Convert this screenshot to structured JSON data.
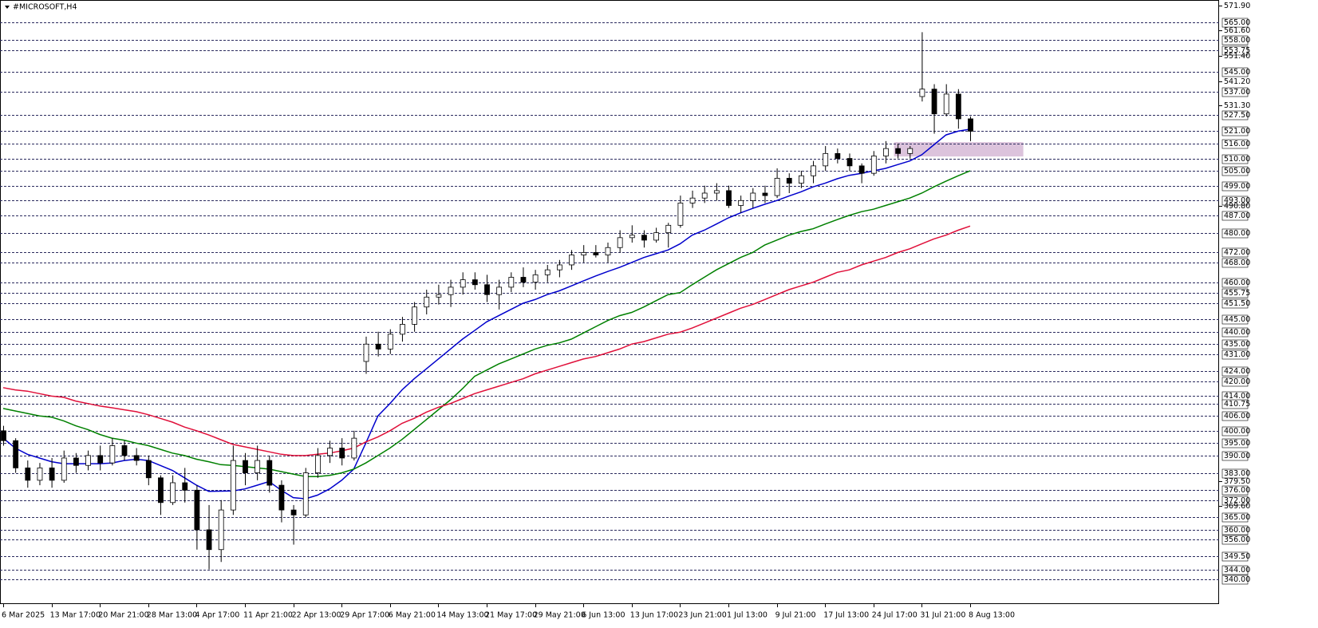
{
  "chart_data": {
    "type": "candlestick",
    "title": "#MICROSOFT,H4",
    "categories": [
      "6 Mar 2025",
      null,
      null,
      null,
      "13 Mar 17:00",
      null,
      null,
      null,
      "20 Mar 21:00",
      null,
      null,
      null,
      "28 Mar 13:00",
      null,
      null,
      null,
      "4 Apr 17:00",
      null,
      null,
      null,
      "11 Apr 21:00",
      null,
      null,
      null,
      "22 Apr 13:00",
      null,
      null,
      null,
      "29 Apr 17:00",
      null,
      null,
      null,
      "6 May 21:00",
      null,
      null,
      null,
      "14 May 13:00",
      null,
      null,
      null,
      "21 May 17:00",
      null,
      null,
      null,
      "29 May 21:00",
      null,
      null,
      null,
      "6 Jun 13:00",
      null,
      null,
      null,
      "13 Jun 17:00",
      null,
      null,
      null,
      "23 Jun 21:00",
      null,
      null,
      null,
      "1 Jul 13:00",
      null,
      null,
      null,
      "9 Jul 21:00",
      null,
      null,
      null,
      "17 Jul 13:00",
      null,
      null,
      null,
      "24 Jul 17:00",
      null,
      null,
      null,
      "31 Jul 21:00",
      null,
      null,
      null,
      "8 Aug 13:00"
    ],
    "candles": {
      "open": [
        400,
        396,
        385,
        380,
        385,
        380,
        389,
        386,
        390,
        387,
        394,
        390,
        388,
        381,
        371,
        379,
        376,
        360,
        352,
        368,
        388,
        383,
        388,
        378,
        368,
        366,
        383,
        390,
        393,
        389,
        428,
        435,
        433,
        439,
        443,
        450,
        454,
        455,
        458,
        461,
        459,
        455,
        458,
        462,
        460,
        463,
        465,
        467,
        471,
        472,
        471,
        474,
        478,
        479,
        477,
        480,
        483,
        492,
        494,
        496,
        497,
        491,
        493,
        496,
        495,
        502,
        500,
        503,
        507,
        512,
        510,
        507,
        504,
        511,
        514,
        512,
        535,
        538,
        528,
        536,
        526
      ],
      "high": [
        402,
        397,
        388,
        387,
        389,
        392,
        391,
        392,
        394,
        397,
        396,
        393,
        390,
        382,
        382,
        385,
        378,
        370,
        372,
        394,
        391,
        394,
        390,
        380,
        370,
        385,
        393,
        396,
        397,
        400,
        438,
        440,
        441,
        446,
        452,
        457,
        459,
        461,
        464,
        464,
        463,
        461,
        464,
        466,
        465,
        467,
        469,
        473,
        475,
        475,
        476,
        481,
        483,
        481,
        482,
        484,
        495,
        497,
        499,
        500,
        499,
        495,
        498,
        499,
        506,
        504,
        505,
        509,
        515,
        514,
        512,
        508,
        513,
        517,
        516,
        515,
        561,
        540,
        540,
        538,
        527
      ],
      "low": [
        394,
        383,
        377,
        378,
        377,
        379,
        383,
        384,
        384,
        386,
        388,
        386,
        378,
        366,
        370,
        371,
        352,
        344,
        347,
        366,
        378,
        380,
        375,
        363,
        354,
        365,
        381,
        387,
        386,
        388,
        423,
        430,
        431,
        436,
        440,
        447,
        451,
        450,
        455,
        457,
        452,
        449,
        456,
        458,
        457,
        460,
        462,
        465,
        468,
        470,
        468,
        472,
        476,
        474,
        476,
        474,
        482,
        490,
        492,
        493,
        490,
        488,
        490,
        492,
        494,
        496,
        498,
        500,
        505,
        508,
        505,
        500,
        503,
        508,
        510,
        510,
        533,
        520,
        527,
        522,
        517
      ],
      "close": [
        396,
        385,
        380,
        385,
        380,
        389,
        386,
        390,
        387,
        394,
        390,
        388,
        381,
        371,
        379,
        376,
        360,
        352,
        368,
        388,
        383,
        388,
        378,
        368,
        366,
        383,
        390,
        393,
        389,
        397,
        435,
        433,
        439,
        443,
        450,
        454,
        455,
        458,
        461,
        459,
        455,
        458,
        462,
        460,
        463,
        465,
        467,
        471,
        472,
        471,
        474,
        478,
        479,
        477,
        480,
        483,
        492,
        494,
        496,
        497,
        491,
        493,
        496,
        495,
        502,
        500,
        503,
        507,
        512,
        510,
        507,
        504,
        511,
        514,
        512,
        514,
        538,
        528,
        536,
        526,
        521
      ],
      "up_color": "#ffffff",
      "down_color": "#000000",
      "edge_color": "#000000"
    },
    "lines": [
      {
        "color": "#0000cc",
        "values": [
          397,
          393,
          390.5,
          389,
          387.5,
          386.7,
          386.7,
          386.7,
          386.7,
          387,
          388,
          388.5,
          388,
          386,
          384,
          381,
          378,
          375.5,
          375.6,
          375.7,
          376.5,
          378,
          379.5,
          376,
          373,
          372.5,
          374,
          376.5,
          380,
          384.5,
          395,
          406,
          411,
          416.5,
          421,
          425,
          429,
          433,
          437,
          440.5,
          444,
          446.5,
          449,
          451.5,
          453,
          455,
          456.5,
          458.5,
          460.5,
          462.5,
          464.3,
          466,
          468,
          470,
          471.5,
          473,
          475.5,
          479,
          481,
          483.5,
          486,
          488,
          489.8,
          491.5,
          493,
          494.8,
          496.5,
          498.5,
          500,
          501.8,
          503.2,
          504,
          505,
          506,
          507.5,
          509,
          511.5,
          515.5,
          519.5,
          521,
          521.8
        ]
      },
      {
        "color": "#008000",
        "values": [
          409,
          408,
          407,
          406,
          405.5,
          404,
          402,
          400.5,
          398.5,
          397,
          396.2,
          395,
          394,
          392.5,
          391,
          390,
          388.5,
          387.5,
          386.3,
          386,
          385.5,
          385,
          384.5,
          383.5,
          382.5,
          381.5,
          381.5,
          382,
          383,
          384.5,
          387,
          390,
          393,
          396.5,
          400.5,
          404.5,
          408.5,
          412.5,
          417,
          422,
          424.5,
          427,
          429,
          431,
          433,
          434.5,
          435.5,
          437,
          439.5,
          442,
          444.5,
          446.5,
          447.8,
          450,
          452.5,
          455,
          455.8,
          459,
          462,
          465,
          467.5,
          470,
          472,
          475,
          477,
          479,
          480.5,
          481.6,
          483.5,
          485.3,
          487,
          488.5,
          489.5,
          491,
          492.5,
          494,
          496,
          498.5,
          500.8,
          503,
          505
        ]
      },
      {
        "color": "#e0103a",
        "values": [
          417.4,
          416.5,
          416,
          415,
          414,
          413.5,
          412,
          411,
          410,
          409.3,
          408.5,
          407.7,
          406.5,
          405,
          403.5,
          401.5,
          400,
          398.3,
          396.4,
          394.5,
          393.5,
          392.5,
          391.5,
          390.5,
          390,
          390,
          390.5,
          391,
          391.9,
          393,
          395.5,
          397.5,
          400,
          403,
          405,
          407.5,
          409.5,
          411,
          413,
          415,
          416.5,
          418,
          419.5,
          421,
          423,
          424.5,
          426,
          427.5,
          429,
          430,
          431.5,
          433,
          435,
          436,
          437.5,
          439,
          439.8,
          441.5,
          443.5,
          445.5,
          447.5,
          449.5,
          451,
          453,
          455,
          457,
          458.5,
          460,
          462,
          464,
          465,
          467,
          468.5,
          470,
          472,
          473.5,
          475.5,
          477.5,
          479,
          481,
          482.7
        ]
      }
    ],
    "zone": {
      "x": [
        73.7,
        84.4
      ],
      "y": [
        510.8,
        516.6
      ],
      "color": "#dcc3dc"
    },
    "ylim": [
      330,
      574
    ],
    "yticks": [
      {
        "value": 571.9,
        "label": "571.90"
      },
      {
        "value": 561.6,
        "label": "561.60"
      },
      {
        "value": 551.4,
        "label": "551.40"
      },
      {
        "value": 541.2,
        "label": "541.20"
      },
      {
        "value": 531.3,
        "label": "531.30"
      },
      {
        "value": 490.8,
        "label": "490.80"
      },
      {
        "value": 379.5,
        "label": "379.50"
      },
      {
        "value": 369.6,
        "label": "369.60"
      }
    ],
    "levels": [
      {
        "value": 565,
        "label": "565.00"
      },
      {
        "value": 558,
        "label": "558.00"
      },
      {
        "value": 553.75,
        "label": "553.75"
      },
      {
        "value": 545,
        "label": "545.00"
      },
      {
        "value": 537,
        "label": "537.00"
      },
      {
        "value": 527.5,
        "label": "527.50"
      },
      {
        "value": 521,
        "label": "521.00"
      },
      {
        "value": 516,
        "label": "516.00"
      },
      {
        "value": 510,
        "label": "510.00"
      },
      {
        "value": 505,
        "label": "505.00"
      },
      {
        "value": 499,
        "label": "499.00"
      },
      {
        "value": 493,
        "label": "493.00"
      },
      {
        "value": 487,
        "label": "487.00"
      },
      {
        "value": 480,
        "label": "480.00"
      },
      {
        "value": 472,
        "label": "472.00"
      },
      {
        "value": 468,
        "label": "468.00"
      },
      {
        "value": 460,
        "label": "460.00"
      },
      {
        "value": 455.75,
        "label": "455.75"
      },
      {
        "value": 451.5,
        "label": "451.50"
      },
      {
        "value": 445,
        "label": "445.00"
      },
      {
        "value": 440,
        "label": "440.00"
      },
      {
        "value": 435,
        "label": "435.00"
      },
      {
        "value": 431,
        "label": "431.00"
      },
      {
        "value": 424,
        "label": "424.00"
      },
      {
        "value": 420,
        "label": "420.00"
      },
      {
        "value": 414,
        "label": "414.00"
      },
      {
        "value": 410.75,
        "label": "410.75"
      },
      {
        "value": 406,
        "label": "406.00"
      },
      {
        "value": 400,
        "label": "400.00"
      },
      {
        "value": 395,
        "label": "395.00"
      },
      {
        "value": 390,
        "label": "390.00"
      },
      {
        "value": 383,
        "label": "383.00"
      },
      {
        "value": 376,
        "label": "376.00"
      },
      {
        "value": 372,
        "label": "372.00"
      },
      {
        "value": 365,
        "label": "365.00"
      },
      {
        "value": 360,
        "label": "360.00"
      },
      {
        "value": 356,
        "label": "356.00"
      },
      {
        "value": 349.5,
        "label": "349.50"
      },
      {
        "value": 344,
        "label": "344.00"
      },
      {
        "value": 340,
        "label": "340.00"
      }
    ]
  }
}
